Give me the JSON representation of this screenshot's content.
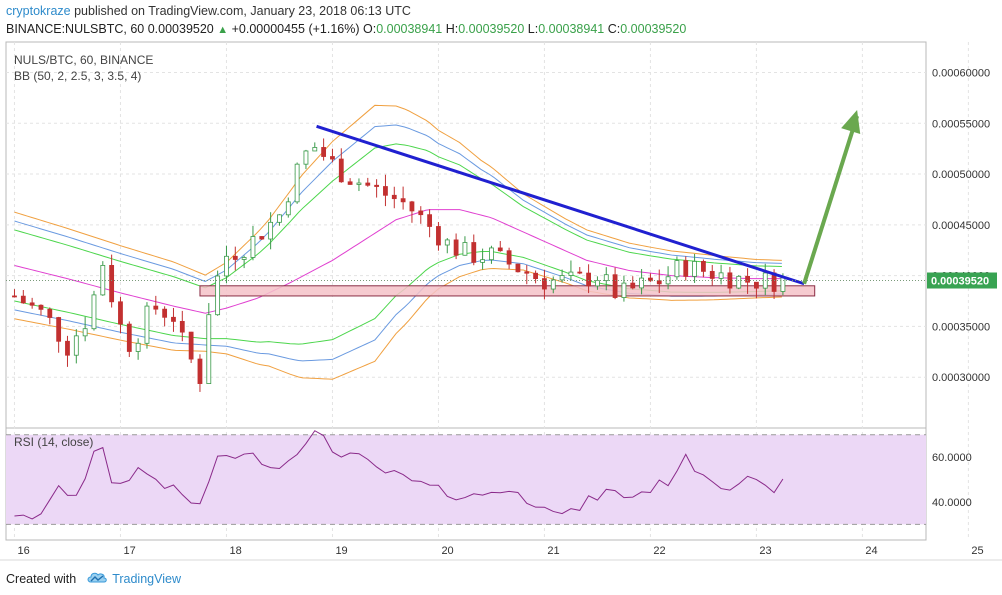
{
  "header": {
    "author": "cryptokraze",
    "published_text": "published on TradingView.com, January 23, 2018 06:13 UTC",
    "symbol_line": "BINANCE:NULSBTC, 60",
    "last": "0.00039520",
    "change": "+0.00000455 (+1.16%)",
    "o_label": "O:",
    "o_val": "0.00038941",
    "h_label": "H:",
    "h_val": "0.00039520",
    "l_label": "L:",
    "l_val": "0.00038941",
    "c_label": "C:",
    "c_val": "0.00039520"
  },
  "legend": {
    "symbol": "NULS/BTC, 60, BINANCE",
    "bb": "BB (50, 2, 2.5, 3, 3.5, 4)",
    "rsi": "RSI (14, close)"
  },
  "footer": {
    "created_with": "Created with",
    "brand": "TradingView"
  },
  "colors": {
    "up": "#3a9a49",
    "down": "#c23030",
    "bb_mid": "#e040d0",
    "bb_green": "#4cd64c",
    "bb_blue": "#6a9ae0",
    "bb_orange": "#f0a040",
    "trendline": "#2020d0",
    "arrow": "#6aa84f",
    "support_fill": "#f4c2c8",
    "support_stroke": "#8b2e45",
    "rsi_band": "#ecd8f6",
    "rsi_line": "#8a2a8a",
    "price_label_bg": "#38a352"
  },
  "chart_data": {
    "type": "candlestick",
    "price_axis": {
      "ylim": [
        0.00025,
        0.00063
      ],
      "ticks": [
        "0.00030000",
        "0.00035000",
        "0.00040000",
        "0.00045000",
        "0.00050000",
        "0.00055000",
        "0.00060000"
      ],
      "tick_values": [
        0.0003,
        0.00035,
        0.0004,
        0.00045,
        0.0005,
        0.00055,
        0.0006
      ],
      "last_price_label": "0.00039520",
      "last_price": 0.0003952
    },
    "rsi_axis": {
      "ylim": [
        23,
        73
      ],
      "ticks": [
        "40.0000",
        "60.0000"
      ],
      "tick_values": [
        40,
        60
      ],
      "band": [
        30,
        70
      ]
    },
    "x_axis": {
      "ticks": [
        "16",
        "17",
        "18",
        "19",
        "20",
        "21",
        "22",
        "23",
        "24",
        "25"
      ],
      "tick_days": [
        0,
        1,
        2,
        3,
        4,
        5,
        6,
        7,
        8,
        9
      ],
      "xlim_days": [
        -0.08,
        8.6
      ]
    },
    "trendline": {
      "from": [
        2.85,
        0.000547
      ],
      "to": [
        7.45,
        0.000392
      ]
    },
    "support_zone": {
      "x": [
        1.75,
        7.55
      ],
      "y": [
        0.00038,
        0.00039
      ]
    },
    "arrow": {
      "from": [
        7.45,
        0.000392
      ],
      "to": [
        7.95,
        0.000563
      ]
    },
    "price_keypoints": [
      [
        0,
        0.00038
      ],
      [
        0.3,
        0.00036
      ],
      [
        0.5,
        0.00033
      ],
      [
        0.7,
        0.00036
      ],
      [
        0.85,
        0.00042
      ],
      [
        0.95,
        0.00036
      ],
      [
        1.1,
        0.00033
      ],
      [
        1.3,
        0.00037
      ],
      [
        1.5,
        0.00036
      ],
      [
        1.6,
        0.00033
      ],
      [
        1.75,
        0.0003
      ],
      [
        1.85,
        0.00038
      ],
      [
        2.0,
        0.00042
      ],
      [
        2.2,
        0.00043
      ],
      [
        2.5,
        0.00046
      ],
      [
        2.65,
        0.0005
      ],
      [
        2.8,
        0.00053
      ],
      [
        2.9,
        0.00052
      ],
      [
        3.1,
        0.0005
      ],
      [
        3.3,
        0.00049
      ],
      [
        3.5,
        0.00048
      ],
      [
        3.7,
        0.00047
      ],
      [
        3.9,
        0.00045
      ],
      [
        4.1,
        0.00043
      ],
      [
        4.3,
        0.00042
      ],
      [
        4.5,
        0.00042
      ],
      [
        4.8,
        0.000405
      ],
      [
        5.0,
        0.000395
      ],
      [
        5.3,
        0.000395
      ],
      [
        5.5,
        0.0004
      ],
      [
        5.7,
        0.00038
      ],
      [
        5.9,
        0.00039
      ],
      [
        6.1,
        0.000395
      ],
      [
        6.3,
        0.00041
      ],
      [
        6.5,
        0.000405
      ],
      [
        6.7,
        0.0004
      ],
      [
        6.9,
        0.000395
      ],
      [
        7.1,
        0.000395
      ],
      [
        7.25,
        0.000395
      ]
    ],
    "bb_mid_keypoints": [
      [
        0,
        0.00041
      ],
      [
        0.5,
        0.000397
      ],
      [
        1.0,
        0.000383
      ],
      [
        1.5,
        0.00037
      ],
      [
        1.8,
        0.000363
      ],
      [
        2.0,
        0.000368
      ],
      [
        2.3,
        0.000378
      ],
      [
        2.6,
        0.000393
      ],
      [
        3.0,
        0.000415
      ],
      [
        3.3,
        0.000435
      ],
      [
        3.6,
        0.000455
      ],
      [
        3.9,
        0.000465
      ],
      [
        4.2,
        0.000465
      ],
      [
        4.5,
        0.000457
      ],
      [
        4.8,
        0.000443
      ],
      [
        5.1,
        0.000429
      ],
      [
        5.4,
        0.000415
      ],
      [
        5.8,
        0.000405
      ],
      [
        6.2,
        0.0004
      ],
      [
        6.6,
        0.000398
      ],
      [
        7.0,
        0.000397
      ],
      [
        7.25,
        0.000397
      ]
    ],
    "bb_width_keypoints": [
      [
        0,
        1.75e-05
      ],
      [
        0.5,
        1.65e-05
      ],
      [
        1.0,
        1.55e-05
      ],
      [
        1.5,
        1.45e-05
      ],
      [
        1.8,
        1.25e-05
      ],
      [
        2.0,
        1.5e-05
      ],
      [
        2.4,
        2.4e-05
      ],
      [
        2.7,
        3.3e-05
      ],
      [
        3.0,
        3.9e-05
      ],
      [
        3.4,
        4.2e-05
      ],
      [
        3.7,
        3.5e-05
      ],
      [
        4.0,
        2.6e-05
      ],
      [
        4.4,
        1.8e-05
      ],
      [
        4.8,
        1.25e-05
      ],
      [
        5.2,
        1.05e-05
      ],
      [
        5.6,
        9.5e-06
      ],
      [
        6.0,
        8.5e-06
      ],
      [
        6.5,
        7.5e-06
      ],
      [
        7.0,
        6.3e-06
      ],
      [
        7.25,
        6e-06
      ]
    ],
    "bb_multipliers": [
      2,
      2.5,
      3,
      3.5
    ],
    "rsi_keypoints": [
      [
        0,
        35
      ],
      [
        0.15,
        30
      ],
      [
        0.4,
        45
      ],
      [
        0.6,
        44
      ],
      [
        0.8,
        67
      ],
      [
        0.95,
        45
      ],
      [
        1.15,
        55
      ],
      [
        1.35,
        50
      ],
      [
        1.6,
        42
      ],
      [
        1.75,
        38
      ],
      [
        1.85,
        52
      ],
      [
        1.95,
        61
      ],
      [
        2.3,
        60
      ],
      [
        2.5,
        55
      ],
      [
        2.75,
        68
      ],
      [
        2.85,
        71
      ],
      [
        3.0,
        63
      ],
      [
        3.2,
        61
      ],
      [
        3.4,
        55
      ],
      [
        3.7,
        50
      ],
      [
        4.0,
        45
      ],
      [
        4.3,
        42
      ],
      [
        4.6,
        46
      ],
      [
        4.9,
        40
      ],
      [
        5.0,
        40
      ],
      [
        5.2,
        33
      ],
      [
        5.4,
        40
      ],
      [
        5.6,
        45
      ],
      [
        5.8,
        42
      ],
      [
        6.0,
        46
      ],
      [
        6.2,
        50
      ],
      [
        6.3,
        60
      ],
      [
        6.5,
        53
      ],
      [
        6.7,
        47
      ],
      [
        6.9,
        50
      ],
      [
        7.1,
        45
      ],
      [
        7.25,
        48
      ]
    ]
  }
}
